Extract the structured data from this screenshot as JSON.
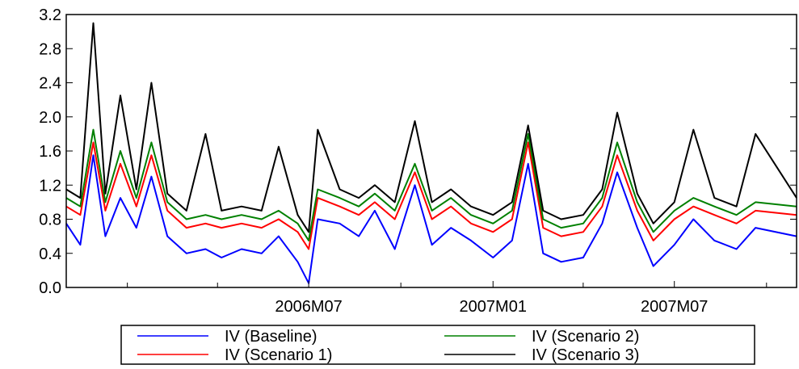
{
  "chart_data": {
    "type": "line",
    "title": "",
    "xlabel": "",
    "ylabel": "",
    "ylim": [
      0.0,
      3.2
    ],
    "yticks": [
      "0.0",
      "0.4",
      "0.8",
      "1.2",
      "1.6",
      "2.0",
      "2.4",
      "2.8",
      "3.2"
    ],
    "xlim": [
      "2005-11-01",
      "2007-10-31"
    ],
    "xtick_labels": [
      {
        "date": "2006-07-01",
        "label": "2006M07"
      },
      {
        "date": "2007-01-01",
        "label": "2007M01"
      },
      {
        "date": "2007-07-01",
        "label": "2007M07"
      }
    ],
    "x_minor_ticks": [
      "2006-01-01",
      "2006-04-01",
      "2006-10-01",
      "2007-04-01",
      "2007-10-01"
    ],
    "grid": false,
    "legend_position": "bottom",
    "series": [
      {
        "name": "IV (Baseline)",
        "color": "#0000ff",
        "points": [
          [
            "2005-11-01",
            0.75
          ],
          [
            "2005-11-15",
            0.5
          ],
          [
            "2005-11-28",
            1.55
          ],
          [
            "2005-12-10",
            0.6
          ],
          [
            "2005-12-25",
            1.05
          ],
          [
            "2006-01-10",
            0.7
          ],
          [
            "2006-01-25",
            1.3
          ],
          [
            "2006-02-10",
            0.6
          ],
          [
            "2006-03-01",
            0.4
          ],
          [
            "2006-03-20",
            0.45
          ],
          [
            "2006-04-05",
            0.35
          ],
          [
            "2006-04-25",
            0.45
          ],
          [
            "2006-05-15",
            0.4
          ],
          [
            "2006-06-01",
            0.6
          ],
          [
            "2006-06-20",
            0.3
          ],
          [
            "2006-07-01",
            0.05
          ],
          [
            "2006-07-10",
            0.8
          ],
          [
            "2006-08-01",
            0.75
          ],
          [
            "2006-08-20",
            0.6
          ],
          [
            "2006-09-05",
            0.9
          ],
          [
            "2006-09-25",
            0.45
          ],
          [
            "2006-10-15",
            1.2
          ],
          [
            "2006-11-01",
            0.5
          ],
          [
            "2006-11-20",
            0.7
          ],
          [
            "2006-12-10",
            0.55
          ],
          [
            "2007-01-01",
            0.35
          ],
          [
            "2007-01-20",
            0.55
          ],
          [
            "2007-02-05",
            1.45
          ],
          [
            "2007-02-20",
            0.4
          ],
          [
            "2007-03-10",
            0.3
          ],
          [
            "2007-04-01",
            0.35
          ],
          [
            "2007-04-20",
            0.75
          ],
          [
            "2007-05-05",
            1.35
          ],
          [
            "2007-05-25",
            0.7
          ],
          [
            "2007-06-10",
            0.25
          ],
          [
            "2007-07-01",
            0.5
          ],
          [
            "2007-07-20",
            0.8
          ],
          [
            "2007-08-10",
            0.55
          ],
          [
            "2007-09-01",
            0.45
          ],
          [
            "2007-09-20",
            0.7
          ],
          [
            "2007-10-31",
            0.6
          ]
        ]
      },
      {
        "name": "IV (Scenario 1)",
        "color": "#ff0000",
        "points": [
          [
            "2005-11-01",
            0.95
          ],
          [
            "2005-11-15",
            0.85
          ],
          [
            "2005-11-28",
            1.7
          ],
          [
            "2005-12-10",
            0.9
          ],
          [
            "2005-12-25",
            1.45
          ],
          [
            "2006-01-10",
            0.95
          ],
          [
            "2006-01-25",
            1.55
          ],
          [
            "2006-02-10",
            0.9
          ],
          [
            "2006-03-01",
            0.7
          ],
          [
            "2006-03-20",
            0.75
          ],
          [
            "2006-04-05",
            0.7
          ],
          [
            "2006-04-25",
            0.75
          ],
          [
            "2006-05-15",
            0.7
          ],
          [
            "2006-06-01",
            0.8
          ],
          [
            "2006-06-20",
            0.65
          ],
          [
            "2006-07-01",
            0.45
          ],
          [
            "2006-07-10",
            1.05
          ],
          [
            "2006-08-01",
            0.95
          ],
          [
            "2006-08-20",
            0.85
          ],
          [
            "2006-09-05",
            1.0
          ],
          [
            "2006-09-25",
            0.8
          ],
          [
            "2006-10-15",
            1.35
          ],
          [
            "2006-11-01",
            0.8
          ],
          [
            "2006-11-20",
            0.95
          ],
          [
            "2006-12-10",
            0.75
          ],
          [
            "2007-01-01",
            0.65
          ],
          [
            "2007-01-20",
            0.8
          ],
          [
            "2007-02-05",
            1.7
          ],
          [
            "2007-02-20",
            0.7
          ],
          [
            "2007-03-10",
            0.6
          ],
          [
            "2007-04-01",
            0.65
          ],
          [
            "2007-04-20",
            0.95
          ],
          [
            "2007-05-05",
            1.55
          ],
          [
            "2007-05-25",
            0.9
          ],
          [
            "2007-06-10",
            0.55
          ],
          [
            "2007-07-01",
            0.8
          ],
          [
            "2007-07-20",
            0.95
          ],
          [
            "2007-08-10",
            0.85
          ],
          [
            "2007-09-01",
            0.75
          ],
          [
            "2007-09-20",
            0.9
          ],
          [
            "2007-10-31",
            0.85
          ]
        ]
      },
      {
        "name": "IV (Scenario 2)",
        "color": "#008000",
        "points": [
          [
            "2005-11-01",
            1.05
          ],
          [
            "2005-11-15",
            0.95
          ],
          [
            "2005-11-28",
            1.85
          ],
          [
            "2005-12-10",
            1.0
          ],
          [
            "2005-12-25",
            1.6
          ],
          [
            "2006-01-10",
            1.05
          ],
          [
            "2006-01-25",
            1.7
          ],
          [
            "2006-02-10",
            1.0
          ],
          [
            "2006-03-01",
            0.8
          ],
          [
            "2006-03-20",
            0.85
          ],
          [
            "2006-04-05",
            0.8
          ],
          [
            "2006-04-25",
            0.85
          ],
          [
            "2006-05-15",
            0.8
          ],
          [
            "2006-06-01",
            0.9
          ],
          [
            "2006-06-20",
            0.75
          ],
          [
            "2006-07-01",
            0.55
          ],
          [
            "2006-07-10",
            1.15
          ],
          [
            "2006-08-01",
            1.05
          ],
          [
            "2006-08-20",
            0.95
          ],
          [
            "2006-09-05",
            1.1
          ],
          [
            "2006-09-25",
            0.9
          ],
          [
            "2006-10-15",
            1.45
          ],
          [
            "2006-11-01",
            0.9
          ],
          [
            "2006-11-20",
            1.05
          ],
          [
            "2006-12-10",
            0.85
          ],
          [
            "2007-01-01",
            0.75
          ],
          [
            "2007-01-20",
            0.9
          ],
          [
            "2007-02-05",
            1.8
          ],
          [
            "2007-02-20",
            0.8
          ],
          [
            "2007-03-10",
            0.7
          ],
          [
            "2007-04-01",
            0.75
          ],
          [
            "2007-04-20",
            1.05
          ],
          [
            "2007-05-05",
            1.7
          ],
          [
            "2007-05-25",
            1.0
          ],
          [
            "2007-06-10",
            0.65
          ],
          [
            "2007-07-01",
            0.9
          ],
          [
            "2007-07-20",
            1.05
          ],
          [
            "2007-08-10",
            0.95
          ],
          [
            "2007-09-01",
            0.85
          ],
          [
            "2007-09-20",
            1.0
          ],
          [
            "2007-10-31",
            0.95
          ]
        ]
      },
      {
        "name": "IV (Scenario 3)",
        "color": "#000000",
        "points": [
          [
            "2005-11-01",
            1.15
          ],
          [
            "2005-11-15",
            1.05
          ],
          [
            "2005-11-28",
            3.1
          ],
          [
            "2005-12-10",
            1.1
          ],
          [
            "2005-12-25",
            2.25
          ],
          [
            "2006-01-10",
            1.15
          ],
          [
            "2006-01-25",
            2.4
          ],
          [
            "2006-02-10",
            1.1
          ],
          [
            "2006-03-01",
            0.9
          ],
          [
            "2006-03-20",
            1.8
          ],
          [
            "2006-04-05",
            0.9
          ],
          [
            "2006-04-25",
            0.95
          ],
          [
            "2006-05-15",
            0.9
          ],
          [
            "2006-06-01",
            1.65
          ],
          [
            "2006-06-20",
            0.85
          ],
          [
            "2006-07-01",
            0.65
          ],
          [
            "2006-07-10",
            1.85
          ],
          [
            "2006-08-01",
            1.15
          ],
          [
            "2006-08-20",
            1.05
          ],
          [
            "2006-09-05",
            1.2
          ],
          [
            "2006-09-25",
            1.0
          ],
          [
            "2006-10-15",
            1.95
          ],
          [
            "2006-11-01",
            1.0
          ],
          [
            "2006-11-20",
            1.15
          ],
          [
            "2006-12-10",
            0.95
          ],
          [
            "2007-01-01",
            0.85
          ],
          [
            "2007-01-20",
            1.0
          ],
          [
            "2007-02-05",
            1.9
          ],
          [
            "2007-02-20",
            0.9
          ],
          [
            "2007-03-10",
            0.8
          ],
          [
            "2007-04-01",
            0.85
          ],
          [
            "2007-04-20",
            1.15
          ],
          [
            "2007-05-05",
            2.05
          ],
          [
            "2007-05-25",
            1.1
          ],
          [
            "2007-06-10",
            0.75
          ],
          [
            "2007-07-01",
            1.0
          ],
          [
            "2007-07-20",
            1.85
          ],
          [
            "2007-08-10",
            1.05
          ],
          [
            "2007-09-01",
            0.95
          ],
          [
            "2007-09-20",
            1.8
          ],
          [
            "2007-10-31",
            1.05
          ]
        ]
      }
    ]
  }
}
